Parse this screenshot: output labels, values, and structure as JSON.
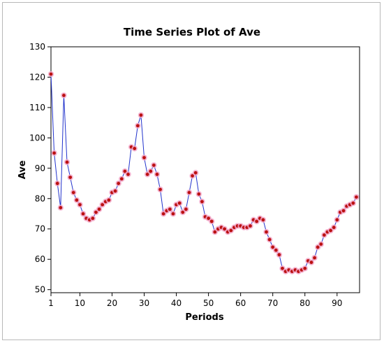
{
  "chart_data": {
    "type": "line",
    "title": "Time Series Plot of Ave",
    "xlabel": "Periods",
    "ylabel": "Ave",
    "xlim": [
      1,
      97
    ],
    "ylim": [
      49,
      130
    ],
    "xticks": [
      1,
      10,
      20,
      30,
      40,
      50,
      60,
      70,
      80,
      90
    ],
    "yticks": [
      50,
      60,
      70,
      80,
      90,
      100,
      110,
      120,
      130
    ],
    "grid": false,
    "line_color": "#2233cc",
    "marker_color": "#bb1111",
    "marker_halo_color": "#f2a6c8",
    "series": [
      {
        "x": [
          1,
          2,
          3,
          4,
          5,
          6,
          7,
          8,
          9,
          10,
          11,
          12,
          13,
          14,
          15,
          16,
          17,
          18,
          19,
          20,
          21,
          22,
          23,
          24,
          25,
          26,
          27,
          28,
          29,
          30,
          31,
          32,
          33,
          34,
          35,
          36,
          37,
          38,
          39,
          40,
          41,
          42,
          43,
          44,
          45,
          46,
          47,
          48,
          49,
          50,
          51,
          52,
          53,
          54,
          55,
          56,
          57,
          58,
          59,
          60,
          61,
          62,
          63,
          64,
          65,
          66,
          67,
          68,
          69,
          70,
          71,
          72,
          73,
          74,
          75,
          76,
          77,
          78,
          79,
          80,
          81,
          82,
          83,
          84,
          85,
          86,
          87,
          88,
          89,
          90,
          91,
          92,
          93,
          94,
          95,
          96
        ],
        "values": [
          121,
          95,
          85,
          77,
          114,
          92,
          87,
          82,
          79.5,
          78,
          75,
          73.5,
          73,
          73.5,
          75.5,
          76.5,
          78,
          79,
          79.5,
          82,
          82.5,
          85,
          86.5,
          89,
          88,
          97,
          96.5,
          104,
          107.5,
          93.5,
          88,
          89,
          91,
          88,
          83,
          75,
          76,
          76.5,
          75,
          78,
          78.5,
          75.5,
          76.5,
          82,
          87.5,
          88.5,
          81.5,
          79,
          74,
          73.5,
          72.5,
          69,
          70,
          70.5,
          70,
          69,
          69.5,
          70.5,
          71,
          71,
          70.5,
          70.5,
          71,
          73,
          72.5,
          73.5,
          73,
          69,
          66.5,
          64,
          63,
          61.5,
          57,
          56,
          56.5,
          56,
          56.5,
          56,
          56.5,
          57,
          59.5,
          59,
          60.5,
          64,
          65,
          68,
          69,
          69.5,
          70.5,
          73,
          75.5,
          76,
          77.5,
          78,
          78.5,
          80.5
        ]
      }
    ]
  }
}
